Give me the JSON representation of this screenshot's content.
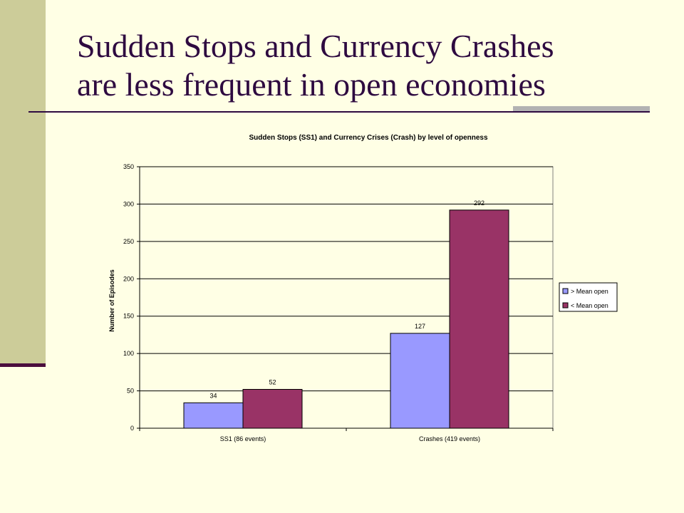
{
  "slide": {
    "title_line1": "Sudden Stops and Currency Crashes",
    "title_line2": "are less frequent in open economies"
  },
  "colors": {
    "background": "#ffffe5",
    "side_bar": "#cccc99",
    "title_text": "#2e0a40",
    "series_above": "#9999ff",
    "series_below": "#993366"
  },
  "chart_data": {
    "type": "bar",
    "title": "Sudden Stops (SS1) and Currency Crises (Crash) by level of openness",
    "xlabel": "",
    "ylabel": "Number of Episodes",
    "categories": [
      "SS1 (86 events)",
      "Crashes (419 events)"
    ],
    "series": [
      {
        "name": "> Mean open",
        "values": [
          34,
          127
        ],
        "color": "#9999ff"
      },
      {
        "name": "< Mean open",
        "values": [
          52,
          292
        ],
        "color": "#993366"
      }
    ],
    "ylim": [
      0,
      350
    ],
    "yticks": [
      0,
      50,
      100,
      150,
      200,
      250,
      300,
      350
    ],
    "grid": true,
    "legend": "right",
    "data_labels": true
  }
}
